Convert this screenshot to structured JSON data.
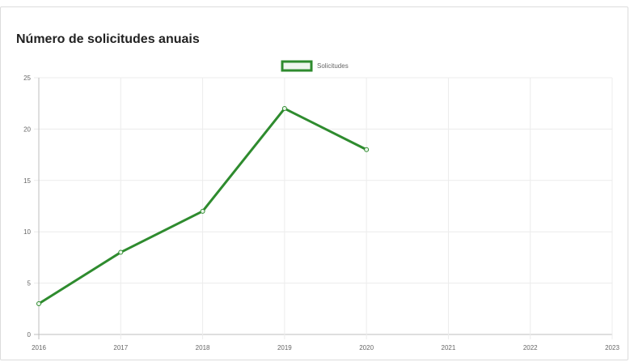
{
  "panel": {
    "title": "Número de solicitudes anuais"
  },
  "chart_data": {
    "type": "line",
    "title": "Número de solicitudes anuais",
    "xlabel": "",
    "ylabel": "",
    "categories": [
      "2016",
      "2017",
      "2018",
      "2019",
      "2020",
      "2021",
      "2022",
      "2023"
    ],
    "series": [
      {
        "name": "Solicitudes",
        "color": "#2e8b2e",
        "values": [
          3,
          8,
          12,
          22,
          18,
          null,
          null,
          null
        ]
      }
    ],
    "ylim": [
      0,
      25
    ],
    "yticks": [
      "0",
      "5",
      "10",
      "15",
      "20",
      "25"
    ],
    "grid": true,
    "legend": "top-center"
  }
}
